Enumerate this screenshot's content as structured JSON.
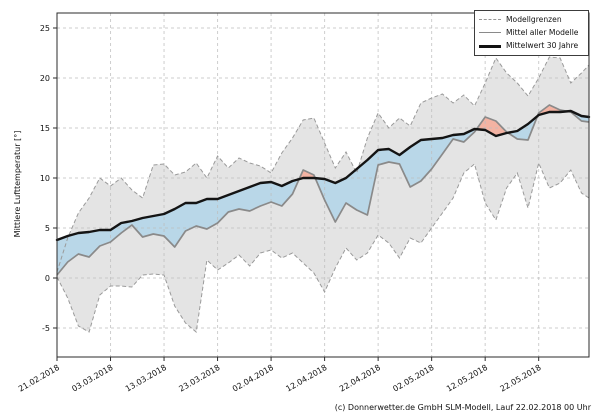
{
  "footer": {
    "copyright": "(c) Donnerwetter.de GmbH SLM-Modell, Lauf 22.02.2018 00 Uhr"
  },
  "chart_data": {
    "type": "line",
    "title": "",
    "xlabel": "",
    "ylabel": "Mittlere Lufttemperatur [°]",
    "ylim": [
      -7.9,
      26.5
    ],
    "xlim_days": [
      0,
      99.4
    ],
    "grid": true,
    "yticks": [
      -5,
      0,
      5,
      10,
      15,
      20,
      25
    ],
    "ytick_labels": [
      "-5",
      "0",
      "5",
      "10",
      "15",
      "20",
      "25"
    ],
    "x_tick_days": [
      0,
      10,
      20,
      30,
      40,
      50,
      60,
      70,
      80,
      90
    ],
    "x_tick_labels": [
      "21.02.2018",
      "03.03.2018",
      "13.03.2018",
      "23.03.2018",
      "02.04.2018",
      "12.04.2018",
      "22.04.2018",
      "02.05.2018",
      "12.05.2018",
      "22.05.2018"
    ],
    "legend": {
      "position": "upper right",
      "entries": [
        {
          "label": "Modellgrenzen",
          "style": "dashed-gray"
        },
        {
          "label": "Mittel aller Modelle",
          "style": "solid-gray"
        },
        {
          "label": "Mittelwert 30 Jahre",
          "style": "thick-black"
        }
      ]
    },
    "x_days": [
      0,
      2,
      4,
      6,
      8,
      10,
      12,
      14,
      16,
      18,
      20,
      22,
      24,
      26,
      28,
      30,
      32,
      34,
      36,
      38,
      40,
      42,
      44,
      46,
      48,
      50,
      52,
      54,
      56,
      58,
      60,
      62,
      64,
      66,
      68,
      70,
      72,
      74,
      76,
      78,
      80,
      82,
      84,
      86,
      88,
      90,
      92,
      94,
      96,
      98,
      99.4
    ],
    "series": [
      {
        "name": "Modellgrenzen (Obergrenze)",
        "values": [
          0.6,
          4.0,
          6.5,
          8.0,
          10.0,
          9.2,
          10.0,
          8.8,
          8.0,
          11.3,
          11.4,
          10.3,
          10.6,
          11.5,
          10.0,
          12.2,
          11.0,
          12.0,
          11.5,
          11.2,
          10.5,
          12.5,
          14.0,
          15.8,
          16.0,
          13.5,
          11.0,
          12.6,
          10.5,
          14.0,
          16.5,
          15.0,
          16.0,
          15.2,
          17.5,
          18.0,
          18.4,
          17.5,
          18.3,
          17.2,
          19.5,
          22.0,
          20.5,
          19.5,
          18.2,
          20.0,
          22.1,
          22.0,
          19.5,
          20.5,
          21.3
        ]
      },
      {
        "name": "Modellgrenzen (Untergrenze)",
        "values": [
          0.1,
          -2.0,
          -4.8,
          -5.4,
          -1.7,
          -0.8,
          -0.8,
          -0.9,
          0.3,
          0.4,
          0.3,
          -2.8,
          -4.5,
          -5.4,
          1.8,
          0.8,
          1.5,
          2.3,
          1.2,
          2.5,
          2.8,
          2.0,
          2.5,
          1.5,
          0.5,
          -1.4,
          1.0,
          3.0,
          1.8,
          2.5,
          4.3,
          3.5,
          2.0,
          4.0,
          3.5,
          5.0,
          6.5,
          8.0,
          10.5,
          11.4,
          7.5,
          5.8,
          9.0,
          10.5,
          7.0,
          11.5,
          9.0,
          9.5,
          10.8,
          8.5,
          8.0
        ]
      },
      {
        "name": "Mittel aller Modelle",
        "values": [
          0.3,
          1.6,
          2.4,
          2.1,
          3.2,
          3.6,
          4.5,
          5.3,
          4.1,
          4.4,
          4.2,
          3.1,
          4.7,
          5.2,
          4.9,
          5.5,
          6.6,
          6.9,
          6.7,
          7.2,
          7.6,
          7.2,
          8.4,
          10.8,
          10.3,
          7.8,
          5.6,
          7.5,
          6.8,
          6.3,
          11.3,
          11.6,
          11.4,
          9.1,
          9.7,
          10.9,
          12.4,
          13.9,
          13.6,
          14.6,
          16.1,
          15.7,
          14.6,
          13.9,
          13.8,
          16.5,
          17.3,
          16.8,
          16.6,
          15.7,
          15.6
        ]
      },
      {
        "name": "Mittelwert 30 Jahre",
        "values": [
          3.8,
          4.2,
          4.5,
          4.6,
          4.8,
          4.8,
          5.5,
          5.7,
          6.0,
          6.2,
          6.4,
          6.9,
          7.5,
          7.5,
          7.9,
          7.9,
          8.3,
          8.7,
          9.1,
          9.5,
          9.6,
          9.2,
          9.7,
          10.0,
          10.0,
          9.9,
          9.5,
          10.0,
          10.9,
          11.8,
          12.8,
          12.9,
          12.3,
          13.1,
          13.8,
          13.9,
          14.0,
          14.3,
          14.4,
          14.9,
          14.8,
          14.2,
          14.5,
          14.7,
          15.4,
          16.3,
          16.6,
          16.6,
          16.7,
          16.2,
          16.1
        ]
      }
    ],
    "colors": {
      "envelope_fill": "#e4e4e4",
      "envelope_edge": "#9a9a9a",
      "below_normal_fill": "#b9d7e8",
      "above_normal_fill": "#f3b3a3",
      "model_mean_line": "#8a8a8a",
      "mean30_line": "#141414",
      "grid": "#bdbdbd",
      "spine": "#2b2b2b",
      "text": "#111111"
    }
  }
}
